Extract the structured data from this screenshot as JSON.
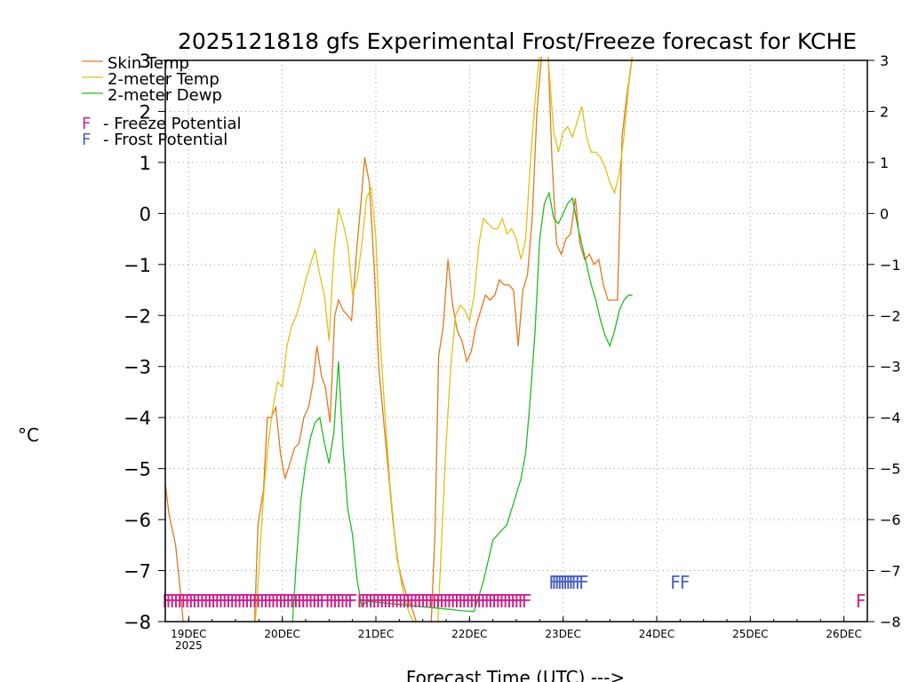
{
  "chart_data": {
    "type": "line",
    "title": "2025121818 gfs Experimental Frost/Freeze forecast for KCHE",
    "ylabel": "°C",
    "xlabel": "Forecast Time (UTC) --->",
    "ylim": [
      -8,
      3
    ],
    "xlim": [
      18.75,
      26.25
    ],
    "grid": true,
    "y_ticks": [
      -8,
      -7,
      -6,
      -5,
      -4,
      -3,
      -2,
      -1,
      0,
      1,
      2,
      3
    ],
    "x_ticks": [
      {
        "x": 19,
        "label": "19DEC",
        "sublabel": "2025"
      },
      {
        "x": 20,
        "label": "20DEC",
        "sublabel": ""
      },
      {
        "x": 21,
        "label": "21DEC",
        "sublabel": ""
      },
      {
        "x": 22,
        "label": "22DEC",
        "sublabel": ""
      },
      {
        "x": 23,
        "label": "23DEC",
        "sublabel": ""
      },
      {
        "x": 24,
        "label": "24DEC",
        "sublabel": ""
      },
      {
        "x": 25,
        "label": "25DEC",
        "sublabel": ""
      },
      {
        "x": 26,
        "label": "26DEC",
        "sublabel": ""
      }
    ],
    "series": [
      {
        "name": "Skin Temp",
        "color": "#e07820",
        "x": [
          18.75,
          18.79,
          18.86,
          18.91,
          18.95,
          19.7,
          19.74,
          19.8,
          19.84,
          19.88,
          19.93,
          19.98,
          20.03,
          20.08,
          20.13,
          20.18,
          20.23,
          20.28,
          20.33,
          20.37,
          20.42,
          20.46,
          20.51,
          20.56,
          20.6,
          20.65,
          20.7,
          20.74,
          20.79,
          20.84,
          20.88,
          20.93,
          20.98,
          21.03,
          21.08,
          21.13,
          21.18,
          21.23,
          21.28,
          21.33,
          21.38,
          21.43,
          21.48,
          21.53,
          21.58,
          21.63,
          21.67,
          21.72,
          21.77,
          21.82,
          21.87,
          21.92,
          21.97,
          22.02,
          22.07,
          22.12,
          22.17,
          22.22,
          22.27,
          22.32,
          22.37,
          22.42,
          22.47,
          22.52,
          22.57,
          22.62,
          22.67,
          22.72,
          22.77,
          22.83,
          22.88,
          22.93,
          22.98,
          23.03,
          23.08,
          23.13,
          23.18,
          23.23,
          23.28,
          23.33,
          23.38,
          23.43,
          23.48,
          23.53,
          23.58,
          23.63,
          23.68,
          23.74
        ],
        "values": [
          -5.3,
          -5.9,
          -6.5,
          -7.4,
          -8.2,
          -8.2,
          -6.1,
          -5.4,
          -4.0,
          -4.0,
          -3.8,
          -4.7,
          -5.2,
          -4.9,
          -4.6,
          -4.5,
          -4.0,
          -3.8,
          -3.3,
          -2.6,
          -3.2,
          -3.4,
          -4.1,
          -2.0,
          -1.7,
          -1.9,
          -2.0,
          -2.1,
          -0.8,
          0.2,
          1.1,
          0.6,
          -1.0,
          -3.0,
          -4.0,
          -5.0,
          -6.0,
          -6.8,
          -7.2,
          -7.5,
          -7.7,
          -8.0,
          -8.4,
          -8.5,
          -8.5,
          -6.3,
          -2.8,
          -2.2,
          -0.9,
          -1.8,
          -2.3,
          -2.5,
          -2.9,
          -2.7,
          -2.2,
          -1.9,
          -1.6,
          -1.7,
          -1.6,
          -1.3,
          -1.4,
          -1.4,
          -1.5,
          -2.6,
          -1.5,
          -1.2,
          -0.1,
          2.0,
          3.1,
          3.6,
          1.1,
          -0.6,
          -0.8,
          -0.5,
          -0.4,
          0.3,
          -0.6,
          -0.9,
          -0.8,
          -1.0,
          -0.9,
          -1.4,
          -1.7,
          -1.7,
          -1.7,
          1.5,
          2.3,
          3.1
        ]
      },
      {
        "name": "2-meter Temp",
        "color": "#dcc21a",
        "x": [
          19.7,
          19.75,
          19.8,
          19.85,
          19.9,
          19.95,
          20.0,
          20.05,
          20.1,
          20.15,
          20.2,
          20.25,
          20.3,
          20.35,
          20.4,
          20.45,
          20.5,
          20.55,
          20.6,
          20.65,
          20.7,
          20.75,
          20.8,
          20.85,
          20.9,
          20.95,
          21.0,
          21.05,
          21.1,
          21.15,
          21.2,
          21.25,
          21.3,
          21.35,
          21.4,
          21.45,
          21.5,
          21.55,
          21.6,
          21.65,
          21.7,
          21.75,
          21.8,
          21.85,
          21.9,
          21.95,
          22.0,
          22.05,
          22.1,
          22.15,
          22.2,
          22.25,
          22.3,
          22.35,
          22.4,
          22.45,
          22.5,
          22.55,
          22.6,
          22.65,
          22.7,
          22.75,
          22.8,
          22.85,
          22.9,
          22.95,
          23.0,
          23.05,
          23.1,
          23.15,
          23.2,
          23.25,
          23.3,
          23.35,
          23.4,
          23.45,
          23.5,
          23.55,
          23.6,
          23.65,
          23.7,
          23.75
        ],
        "values": [
          -8.3,
          -7.0,
          -5.5,
          -4.5,
          -3.8,
          -3.3,
          -3.4,
          -2.6,
          -2.2,
          -2.0,
          -1.7,
          -1.3,
          -1.0,
          -0.7,
          -1.2,
          -1.6,
          -2.5,
          -0.8,
          0.1,
          -0.2,
          -0.6,
          -1.6,
          -1.3,
          -0.6,
          0.3,
          0.5,
          -0.5,
          -2.6,
          -4.0,
          -5.3,
          -6.3,
          -7.0,
          -7.5,
          -7.8,
          -8.0,
          -8.1,
          -8.3,
          -8.5,
          -8.6,
          -8.5,
          -6.5,
          -4.5,
          -3.0,
          -2.0,
          -1.8,
          -1.9,
          -2.1,
          -1.6,
          -0.6,
          -0.1,
          -0.2,
          -0.3,
          -0.3,
          -0.1,
          -0.4,
          -0.3,
          -0.5,
          -0.9,
          -0.5,
          1.0,
          2.2,
          3.2,
          3.8,
          2.8,
          1.6,
          1.2,
          1.6,
          1.7,
          1.5,
          1.8,
          2.1,
          1.5,
          1.2,
          1.2,
          1.1,
          0.9,
          0.6,
          0.4,
          0.8,
          1.5,
          2.5,
          3.2
        ]
      },
      {
        "name": "2-meter Dewp",
        "color": "#22bb22",
        "x": [
          20.1,
          20.15,
          20.2,
          20.25,
          20.3,
          20.35,
          20.4,
          20.45,
          20.5,
          20.55,
          20.6,
          20.65,
          20.7,
          20.75,
          20.8,
          20.85,
          20.9,
          22.0,
          22.05,
          22.1,
          22.15,
          22.2,
          22.25,
          22.3,
          22.35,
          22.4,
          22.45,
          22.5,
          22.55,
          22.6,
          22.65,
          22.7,
          22.75,
          22.8,
          22.85,
          22.9,
          22.95,
          23.0,
          23.05,
          23.1,
          23.15,
          23.2,
          23.25,
          23.3,
          23.35,
          23.4,
          23.45,
          23.5,
          23.55,
          23.6,
          23.65,
          23.7,
          23.74
        ],
        "values": [
          -8.3,
          -6.8,
          -5.6,
          -4.9,
          -4.4,
          -4.1,
          -4.0,
          -4.5,
          -4.9,
          -4.3,
          -2.9,
          -4.6,
          -5.8,
          -6.3,
          -7.2,
          -7.7,
          -7.6,
          -7.8,
          -7.8,
          -7.5,
          -7.2,
          -6.8,
          -6.4,
          -6.3,
          -6.2,
          -6.1,
          -5.8,
          -5.5,
          -5.2,
          -4.7,
          -3.6,
          -2.3,
          -0.5,
          0.2,
          0.4,
          -0.1,
          -0.2,
          0.0,
          0.2,
          0.3,
          -0.2,
          -0.6,
          -1.0,
          -1.4,
          -1.7,
          -2.1,
          -2.4,
          -2.6,
          -2.3,
          -1.9,
          -1.7,
          -1.6,
          -1.6
        ]
      }
    ],
    "legend": {
      "placement": "top-left",
      "series_entries": [
        "Skin Temp",
        "2-meter Temp",
        "2-meter Dewp"
      ],
      "marker_entries": [
        {
          "letter": "F",
          "text": "- Freeze Potential",
          "color": "#cc1f8a"
        },
        {
          "letter": "F",
          "text": "- Frost Potential",
          "color": "#4a5fc1"
        }
      ]
    },
    "freeze_markers": {
      "letter": "F",
      "color": "#cc1f8a",
      "y": -7.55,
      "x": [
        18.77,
        18.81,
        18.85,
        18.89,
        18.93,
        18.97,
        19.01,
        19.05,
        19.09,
        19.13,
        19.17,
        19.21,
        19.25,
        19.29,
        19.33,
        19.37,
        19.41,
        19.45,
        19.49,
        19.53,
        19.57,
        19.61,
        19.65,
        19.69,
        19.73,
        19.77,
        19.81,
        19.85,
        19.89,
        19.93,
        19.97,
        20.01,
        20.05,
        20.09,
        20.13,
        20.17,
        20.21,
        20.25,
        20.29,
        20.33,
        20.37,
        20.41,
        20.45,
        20.51,
        20.55,
        20.59,
        20.63,
        20.67,
        20.71,
        20.75,
        20.85,
        20.89,
        20.93,
        20.97,
        21.01,
        21.05,
        21.09,
        21.13,
        21.17,
        21.21,
        21.25,
        21.29,
        21.33,
        21.37,
        21.41,
        21.45,
        21.49,
        21.53,
        21.57,
        21.61,
        21.65,
        21.69,
        21.73,
        21.77,
        21.81,
        21.85,
        21.89,
        21.93,
        21.97,
        22.01,
        22.05,
        22.09,
        22.13,
        22.17,
        22.21,
        22.25,
        22.29,
        22.33,
        22.37,
        22.41,
        22.45,
        22.49,
        22.53,
        22.57,
        22.61,
        26.18
      ]
    },
    "frost_markers": {
      "letter": "F",
      "color": "#4a5fc1",
      "y": -7.18,
      "x": [
        22.9,
        22.93,
        22.96,
        22.99,
        23.02,
        23.05,
        23.08,
        23.11,
        23.14,
        23.18,
        23.22,
        24.2,
        24.3
      ]
    }
  }
}
